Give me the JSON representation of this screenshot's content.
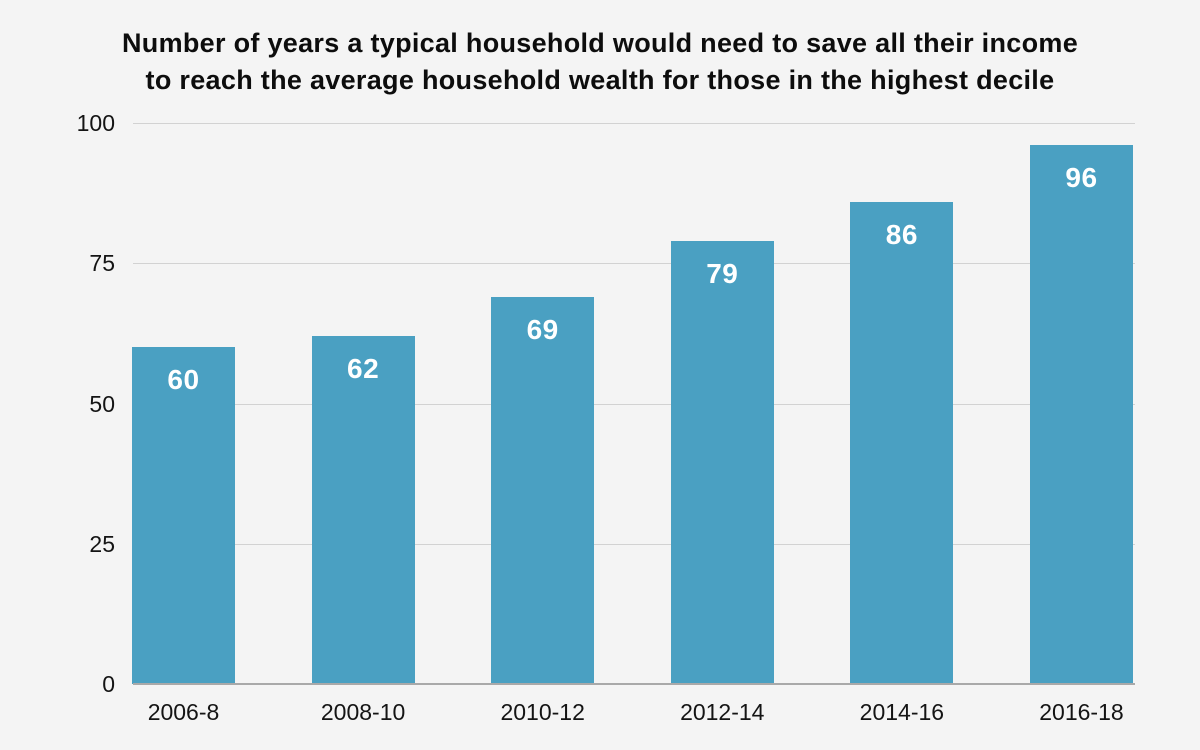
{
  "title_lines": [
    "Number of years a typical household would need to save all their income",
    "to reach the average household wealth for those in the highest decile"
  ],
  "chart_data": {
    "type": "bar",
    "title": "Number of years a typical household would need to save all their income to reach the average household wealth for those in the highest decile",
    "categories": [
      "2006-8",
      "2008-10",
      "2010-12",
      "2012-14",
      "2014-16",
      "2016-18"
    ],
    "values": [
      60,
      62,
      69,
      79,
      86,
      96
    ],
    "xlabel": "",
    "ylabel": "",
    "ylim": [
      0,
      100
    ],
    "yticks": [
      0,
      25,
      50,
      75,
      100
    ],
    "grid": true,
    "legend": false,
    "value_label_position": "inside-top"
  },
  "colors": {
    "background": "#f4f4f4",
    "bar": "#4aa0c2",
    "gridline": "#d2d2d2",
    "axis_line": "#a9a9a9",
    "text": "#111111",
    "value_label": "#ffffff"
  }
}
